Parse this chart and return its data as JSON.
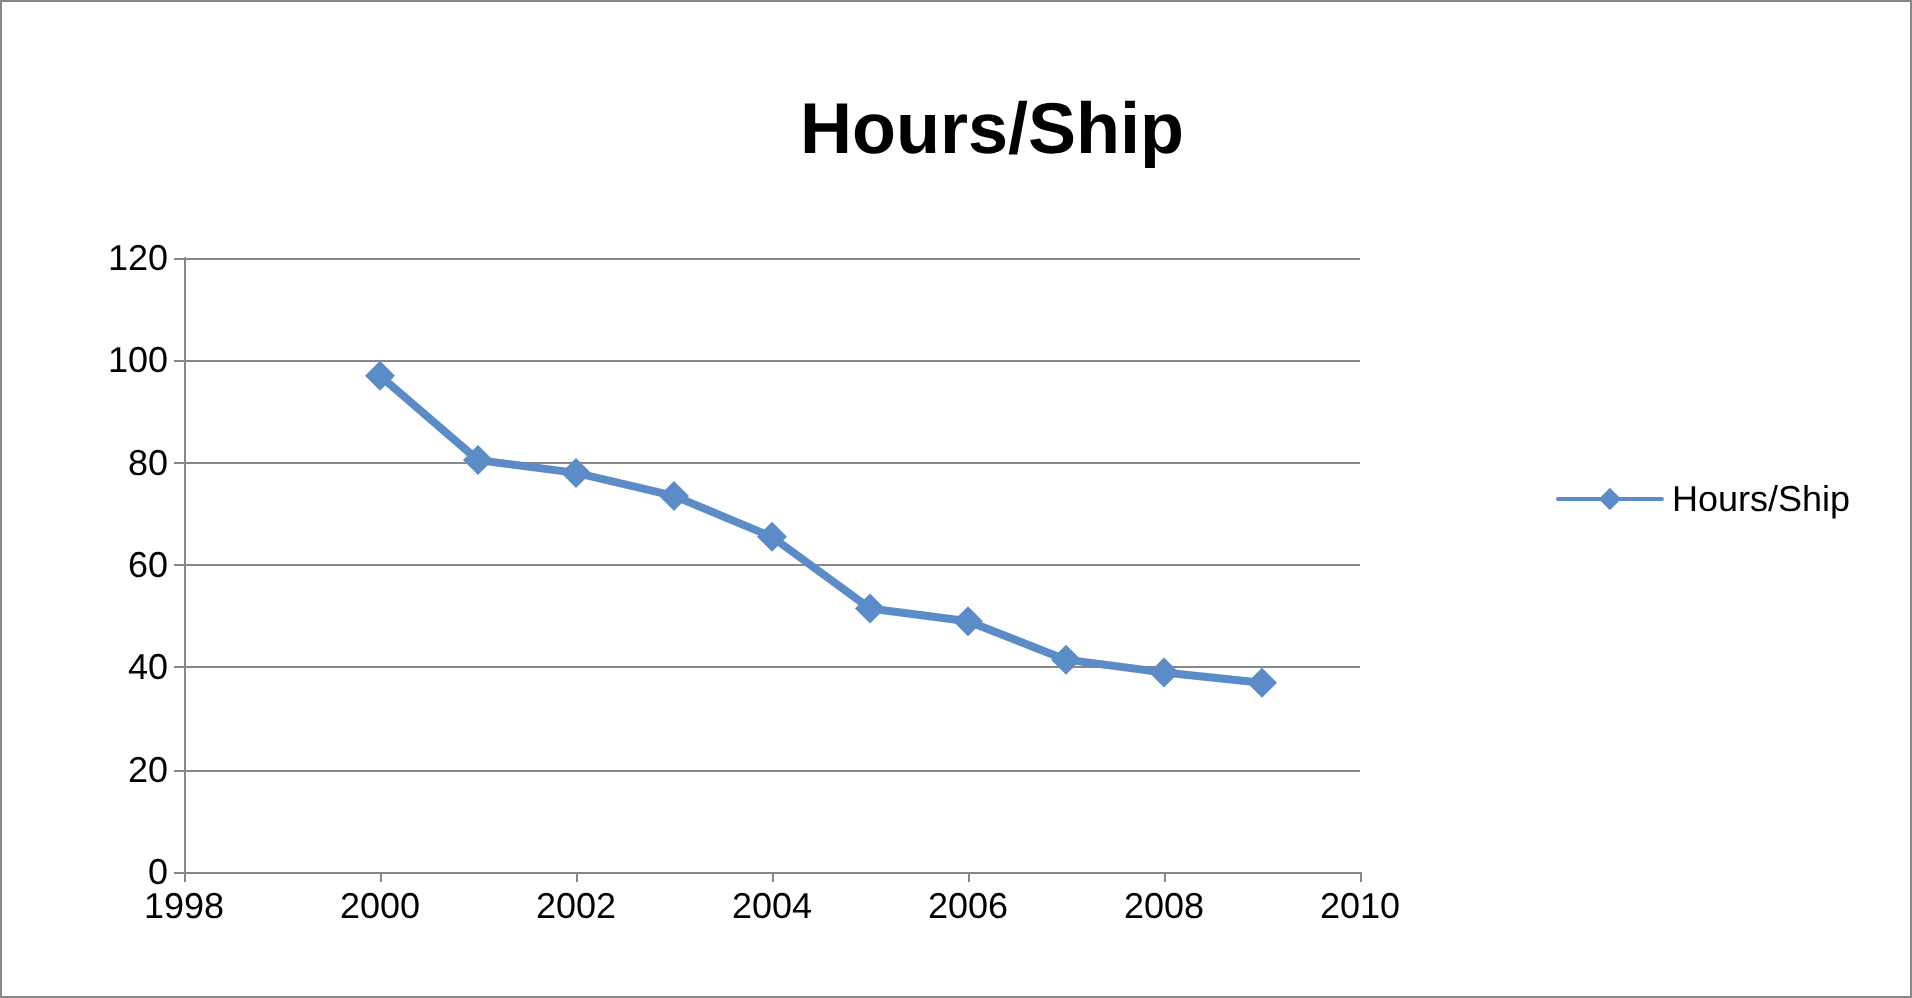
{
  "chart_data": {
    "type": "line",
    "title": "Hours/Ship",
    "x": [
      2000,
      2001,
      2002,
      2003,
      2004,
      2005,
      2006,
      2007,
      2008,
      2009
    ],
    "series": [
      {
        "name": "Hours/Ship",
        "color": "#5b8cc8",
        "values": [
          97,
          80.5,
          78,
          73.5,
          65.5,
          51.5,
          49,
          41.5,
          39,
          37
        ]
      }
    ],
    "xlim": [
      1998,
      2010
    ],
    "xticks": [
      1998,
      2000,
      2002,
      2004,
      2006,
      2008,
      2010
    ],
    "ylim": [
      0,
      120
    ],
    "yticks": [
      0,
      20,
      40,
      60,
      80,
      100,
      120
    ],
    "grid": "y",
    "legend": "right",
    "marker": "diamond",
    "line_style": "solid"
  }
}
